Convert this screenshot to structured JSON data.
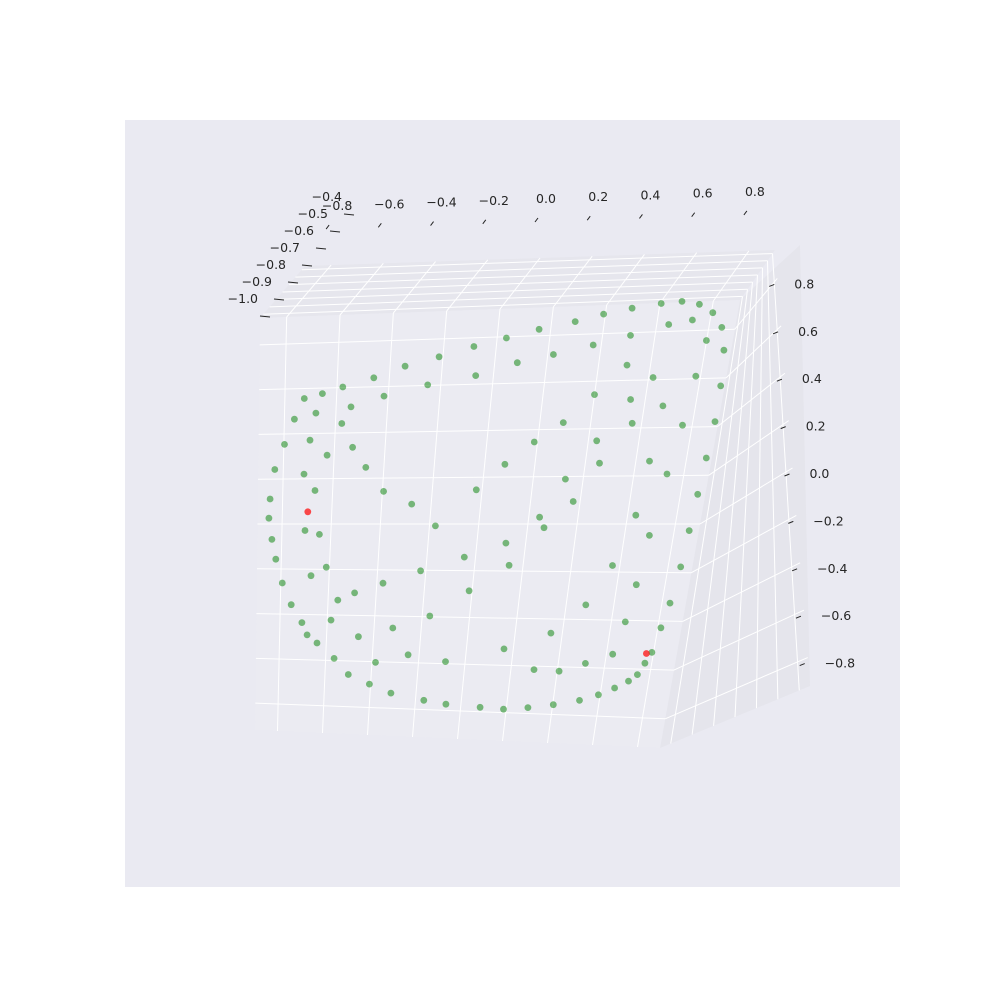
{
  "chart_data": {
    "type": "scatter",
    "projection": "3d",
    "title": "",
    "xlabel": "",
    "ylabel": "",
    "zlabel": "",
    "grid": true,
    "legend": "none",
    "colors": {
      "figure_background": "#ffffff",
      "axes_background": "#eaeaf2",
      "pane_back": "#ebebf2",
      "pane_right": "#e5e5ec",
      "pane_top": "#e6e6ed",
      "grid": "#ffffff",
      "tick_text": "#262626",
      "main_series": "#008000",
      "highlight_series": "#ff0000"
    },
    "x_axis": {
      "range": [
        -0.9,
        0.9
      ],
      "ticks": [
        -0.8,
        -0.6,
        -0.4,
        -0.2,
        0.0,
        0.2,
        0.4,
        0.6,
        0.8
      ],
      "tick_labels": [
        "−0.8",
        "−0.6",
        "−0.4",
        "−0.2",
        "0.0",
        "0.2",
        "0.4",
        "0.6",
        "0.8"
      ]
    },
    "y_axis": {
      "range": [
        -1.05,
        -0.35
      ],
      "ticks": [
        -1.0,
        -0.9,
        -0.8,
        -0.7,
        -0.6,
        -0.5,
        -0.4
      ],
      "tick_labels": [
        "−1.0",
        "−0.9",
        "−0.8",
        "−0.7",
        "−0.6",
        "−0.5",
        "−0.4"
      ]
    },
    "z_axis": {
      "range": [
        -0.92,
        0.92
      ],
      "ticks": [
        -0.8,
        -0.6,
        -0.4,
        -0.2,
        0.0,
        0.2,
        0.4,
        0.6,
        0.8
      ],
      "tick_labels": [
        "−0.8",
        "−0.6",
        "−0.4",
        "−0.2",
        "0.0",
        "0.2",
        "0.4",
        "0.6",
        "0.8"
      ]
    },
    "series": [
      {
        "marker": "circle",
        "color": "#008000",
        "alpha": 0.5,
        "points": [
          [
            -0.77,
            -0.62,
            0.48
          ],
          [
            -0.8,
            -0.58,
            0.4
          ],
          [
            -0.83,
            -0.54,
            0.3
          ],
          [
            -0.86,
            -0.5,
            0.2
          ],
          [
            -0.87,
            -0.46,
            0.08
          ],
          [
            -0.87,
            -0.44,
            0.0
          ],
          [
            -0.86,
            -0.46,
            -0.1
          ],
          [
            -0.85,
            -0.5,
            -0.2
          ],
          [
            -0.83,
            -0.55,
            -0.32
          ],
          [
            -0.8,
            -0.6,
            -0.43
          ],
          [
            -0.76,
            -0.64,
            -0.52
          ],
          [
            -0.74,
            -0.66,
            -0.58
          ],
          [
            -0.7,
            -0.68,
            -0.62
          ],
          [
            -0.62,
            -0.66,
            -0.68
          ],
          [
            -0.55,
            -0.63,
            -0.74
          ],
          [
            -0.45,
            -0.6,
            -0.77
          ],
          [
            -0.35,
            -0.58,
            -0.8
          ],
          [
            -0.2,
            -0.56,
            -0.82
          ],
          [
            -0.1,
            -0.55,
            -0.83
          ],
          [
            0.05,
            -0.56,
            -0.84
          ],
          [
            0.15,
            -0.58,
            -0.85
          ],
          [
            0.25,
            -0.62,
            -0.85
          ],
          [
            0.35,
            -0.68,
            -0.85
          ],
          [
            0.45,
            -0.76,
            -0.85
          ],
          [
            0.52,
            -0.82,
            -0.84
          ],
          [
            0.58,
            -0.86,
            -0.82
          ],
          [
            0.63,
            -0.9,
            -0.8
          ],
          [
            0.66,
            -0.93,
            -0.78
          ],
          [
            0.68,
            -0.96,
            -0.74
          ],
          [
            0.7,
            -0.98,
            -0.7
          ],
          [
            0.72,
            -0.99,
            -0.6
          ],
          [
            0.74,
            -1.0,
            -0.5
          ],
          [
            0.76,
            -1.0,
            -0.35
          ],
          [
            0.77,
            -1.0,
            -0.2
          ],
          [
            0.78,
            -1.0,
            -0.05
          ],
          [
            0.79,
            -1.0,
            0.1
          ],
          [
            0.8,
            -1.0,
            0.25
          ],
          [
            0.8,
            -0.99,
            0.4
          ],
          [
            0.79,
            -0.98,
            0.55
          ],
          [
            0.77,
            -0.96,
            0.65
          ],
          [
            0.73,
            -0.93,
            0.72
          ],
          [
            0.68,
            -0.88,
            0.77
          ],
          [
            0.62,
            -0.82,
            0.8
          ],
          [
            0.55,
            -0.76,
            0.81
          ],
          [
            0.45,
            -0.7,
            0.81
          ],
          [
            0.35,
            -0.66,
            0.8
          ],
          [
            0.25,
            -0.63,
            0.78
          ],
          [
            0.12,
            -0.6,
            0.76
          ],
          [
            0.0,
            -0.59,
            0.73
          ],
          [
            -0.12,
            -0.58,
            0.7
          ],
          [
            -0.25,
            -0.58,
            0.66
          ],
          [
            -0.38,
            -0.59,
            0.62
          ],
          [
            -0.5,
            -0.6,
            0.57
          ],
          [
            -0.62,
            -0.61,
            0.53
          ],
          [
            -0.7,
            -0.62,
            0.5
          ],
          [
            -0.6,
            -0.5,
            0.4
          ],
          [
            -0.55,
            -0.48,
            0.3
          ],
          [
            -0.5,
            -0.52,
            0.2
          ],
          [
            -0.42,
            -0.5,
            0.1
          ],
          [
            -0.3,
            -0.48,
            0.05
          ],
          [
            -0.2,
            -0.5,
            -0.05
          ],
          [
            -0.05,
            -0.52,
            0.1
          ],
          [
            0.05,
            -0.55,
            0.2
          ],
          [
            0.15,
            -0.6,
            0.28
          ],
          [
            0.25,
            -0.64,
            0.35
          ],
          [
            0.35,
            -0.7,
            0.45
          ],
          [
            0.45,
            -0.78,
            0.55
          ],
          [
            0.55,
            -0.84,
            0.48
          ],
          [
            0.5,
            -0.8,
            0.3
          ],
          [
            0.4,
            -0.74,
            0.15
          ],
          [
            0.32,
            -0.7,
            0.0
          ],
          [
            0.22,
            -0.66,
            -0.1
          ],
          [
            0.1,
            -0.62,
            -0.25
          ],
          [
            -0.05,
            -0.58,
            -0.35
          ],
          [
            -0.2,
            -0.54,
            -0.45
          ],
          [
            -0.35,
            -0.52,
            -0.5
          ],
          [
            -0.5,
            -0.55,
            -0.55
          ],
          [
            -0.6,
            -0.58,
            -0.4
          ],
          [
            -0.65,
            -0.56,
            -0.25
          ],
          [
            -0.68,
            -0.54,
            -0.1
          ],
          [
            -0.7,
            -0.52,
            0.1
          ],
          [
            -0.66,
            -0.54,
            0.25
          ],
          [
            0.6,
            -0.9,
            -0.4
          ],
          [
            0.58,
            -0.88,
            -0.55
          ],
          [
            0.55,
            -0.86,
            -0.68
          ],
          [
            0.45,
            -0.78,
            -0.7
          ],
          [
            0.35,
            -0.72,
            -0.72
          ],
          [
            0.25,
            -0.66,
            -0.7
          ],
          [
            0.62,
            -0.92,
            -0.2
          ],
          [
            0.65,
            -0.94,
            0.05
          ],
          [
            0.68,
            -0.95,
            0.25
          ],
          [
            0.7,
            -0.96,
            0.45
          ],
          [
            0.72,
            -0.95,
            0.6
          ],
          [
            0.66,
            -0.9,
            0.7
          ],
          [
            0.58,
            -0.84,
            0.7
          ],
          [
            0.45,
            -0.76,
            0.68
          ],
          [
            0.32,
            -0.7,
            0.66
          ],
          [
            0.18,
            -0.64,
            0.64
          ],
          [
            0.05,
            -0.6,
            0.62
          ],
          [
            -0.1,
            -0.56,
            0.58
          ],
          [
            -0.28,
            -0.54,
            0.55
          ],
          [
            -0.45,
            -0.56,
            0.5
          ],
          [
            -0.58,
            -0.58,
            0.45
          ],
          [
            0.12,
            -0.6,
            -0.6
          ],
          [
            -0.12,
            -0.56,
            -0.65
          ],
          [
            -0.28,
            -0.54,
            -0.62
          ],
          [
            -0.42,
            -0.55,
            -0.66
          ],
          [
            0.3,
            -0.68,
            -0.55
          ],
          [
            0.42,
            -0.76,
            -0.45
          ],
          [
            0.5,
            -0.82,
            -0.3
          ],
          [
            0.56,
            -0.86,
            -0.1
          ],
          [
            0.58,
            -0.88,
            0.12
          ],
          [
            0.6,
            -0.88,
            0.35
          ],
          [
            0.48,
            -0.8,
            0.4
          ],
          [
            0.38,
            -0.72,
            0.25
          ],
          [
            0.28,
            -0.68,
            0.1
          ],
          [
            0.2,
            -0.64,
            -0.05
          ],
          [
            0.08,
            -0.6,
            -0.15
          ],
          [
            -0.08,
            -0.56,
            -0.2
          ],
          [
            -0.25,
            -0.52,
            -0.25
          ],
          [
            -0.4,
            -0.5,
            -0.3
          ],
          [
            -0.52,
            -0.52,
            -0.35
          ],
          [
            -0.62,
            -0.55,
            -0.48
          ],
          [
            -0.72,
            -0.6,
            -0.3
          ],
          [
            -0.75,
            -0.6,
            -0.1
          ],
          [
            -0.76,
            -0.6,
            0.15
          ],
          [
            -0.74,
            -0.6,
            0.3
          ],
          [
            -0.72,
            -0.6,
            0.42
          ]
        ]
      },
      {
        "marker": "circle",
        "color": "#ff0000",
        "alpha": 0.7,
        "points": [
          [
            -0.73,
            -0.54,
            0.0
          ],
          [
            0.68,
            -0.96,
            -0.7
          ]
        ]
      }
    ]
  }
}
